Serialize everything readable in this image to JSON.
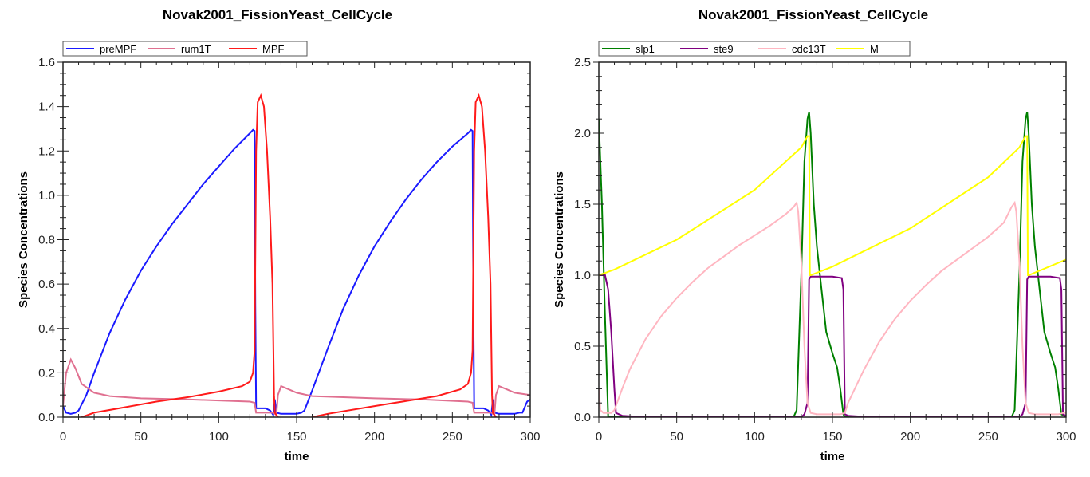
{
  "chart_data": [
    {
      "type": "line",
      "title": "Novak2001_FissionYeast_CellCycle",
      "xlabel": "time",
      "ylabel": "Species Concentrations",
      "xlim": [
        0,
        300
      ],
      "ylim": [
        0,
        1.6
      ],
      "xmajor": 50,
      "xminor": 10,
      "ymajor": 0.2,
      "yminor": 0.05,
      "ydec": 1,
      "xticks": [
        "0",
        "50",
        "100",
        "150",
        "200",
        "250",
        "300"
      ],
      "yticks": [
        "0.0",
        "0.2",
        "0.4",
        "0.6",
        "0.8",
        "1.0",
        "1.2",
        "1.4",
        "1.6"
      ],
      "legend": "top-left",
      "series": [
        {
          "name": "preMPF",
          "color": "#1a1aff",
          "x": [
            0,
            2,
            5,
            8,
            10,
            15,
            20,
            30,
            40,
            50,
            60,
            70,
            80,
            90,
            100,
            110,
            120,
            122,
            123,
            123.5,
            124,
            130,
            133,
            135,
            136,
            137,
            140,
            150,
            153,
            155,
            160,
            170,
            180,
            190,
            200,
            210,
            220,
            230,
            240,
            250,
            260,
            262,
            263,
            263.5,
            264,
            270,
            273,
            275,
            276,
            277,
            280,
            290,
            293,
            295,
            298,
            300
          ],
          "y": [
            0.05,
            0.02,
            0.015,
            0.02,
            0.03,
            0.1,
            0.2,
            0.38,
            0.53,
            0.66,
            0.77,
            0.87,
            0.96,
            1.05,
            1.13,
            1.21,
            1.28,
            1.295,
            1.29,
            0.5,
            0.04,
            0.04,
            0.03,
            0.01,
            0.08,
            0.02,
            0.015,
            0.015,
            0.02,
            0.03,
            0.12,
            0.31,
            0.49,
            0.64,
            0.77,
            0.88,
            0.98,
            1.07,
            1.15,
            1.22,
            1.28,
            1.295,
            1.29,
            0.5,
            0.04,
            0.04,
            0.03,
            0.01,
            0.08,
            0.02,
            0.015,
            0.015,
            0.02,
            0.02,
            0.07,
            0.08
          ]
        },
        {
          "name": "rum1T",
          "color": "#e07090",
          "x": [
            0,
            2,
            5,
            8,
            12,
            20,
            30,
            50,
            80,
            100,
            120,
            123,
            124,
            130,
            135,
            137,
            138,
            140,
            145,
            150,
            160,
            180,
            200,
            230,
            260,
            263,
            264,
            270,
            275,
            277,
            278,
            280,
            285,
            290,
            300
          ],
          "y": [
            0.05,
            0.2,
            0.26,
            0.22,
            0.15,
            0.11,
            0.095,
            0.085,
            0.08,
            0.075,
            0.07,
            0.065,
            0.02,
            0.02,
            0.02,
            0.01,
            0.1,
            0.14,
            0.125,
            0.11,
            0.095,
            0.09,
            0.085,
            0.08,
            0.07,
            0.065,
            0.02,
            0.02,
            0.02,
            0.01,
            0.1,
            0.14,
            0.125,
            0.11,
            0.1
          ]
        },
        {
          "name": "MPF",
          "color": "#ff1a1a",
          "x": [
            10,
            12,
            20,
            40,
            60,
            80,
            100,
            115,
            120,
            122,
            123,
            124,
            125,
            127,
            129,
            131,
            133,
            134.5,
            135.5,
            136,
            138,
            140,
            158,
            160,
            170,
            200,
            240,
            255,
            260,
            262,
            263,
            264,
            265,
            267,
            269,
            271,
            273,
            274.5,
            275.5,
            276,
            278,
            280
          ],
          "y": [
            -0.01,
            0,
            0.02,
            0.045,
            0.07,
            0.09,
            0.115,
            0.14,
            0.16,
            0.2,
            0.3,
            1.2,
            1.42,
            1.45,
            1.4,
            1.2,
            0.9,
            0.6,
            0.1,
            0.02,
            0,
            -0.02,
            -0.02,
            0,
            0.015,
            0.05,
            0.095,
            0.125,
            0.15,
            0.2,
            0.3,
            1.2,
            1.42,
            1.45,
            1.4,
            1.2,
            0.9,
            0.6,
            0.1,
            0.02,
            0,
            -0.02
          ]
        }
      ]
    },
    {
      "type": "line",
      "title": "Novak2001_FissionYeast_CellCycle",
      "xlabel": "time",
      "ylabel": "Species Concentrations",
      "xlim": [
        0,
        300
      ],
      "ylim": [
        0,
        2.5
      ],
      "xmajor": 50,
      "xminor": 10,
      "ymajor": 0.5,
      "yminor": 0.1,
      "ydec": 1,
      "xticks": [
        "0",
        "50",
        "100",
        "150",
        "200",
        "250",
        "300"
      ],
      "yticks": [
        "0.0",
        "0.5",
        "1.0",
        "1.5",
        "2.0",
        "2.5"
      ],
      "legend": "top-left",
      "series": [
        {
          "name": "slp1",
          "color": "#008000",
          "x": [
            0,
            2,
            4,
            6,
            125,
            127,
            130,
            132,
            134,
            135,
            136,
            138,
            140,
            143,
            146,
            150,
            153,
            155,
            157,
            158,
            265,
            267,
            270,
            272,
            274,
            275,
            276,
            278,
            280,
            283,
            286,
            290,
            293,
            295,
            297,
            300
          ],
          "y": [
            2.1,
            1.5,
            0.7,
            0,
            0,
            0.05,
            1.0,
            1.8,
            2.1,
            2.15,
            2.0,
            1.5,
            1.2,
            0.9,
            0.6,
            0.45,
            0.35,
            0.2,
            0.02,
            0,
            0,
            0.05,
            1.0,
            1.8,
            2.1,
            2.15,
            2.0,
            1.5,
            1.2,
            0.9,
            0.6,
            0.45,
            0.35,
            0.2,
            0.02,
            0
          ]
        },
        {
          "name": "ste9",
          "color": "#800080",
          "x": [
            0,
            4,
            6,
            8,
            10,
            11,
            15,
            30,
            130,
            132,
            134,
            135,
            136,
            150,
            156,
            157,
            158,
            160,
            175,
            270,
            272,
            274,
            275,
            276,
            290,
            296,
            297,
            298,
            300
          ],
          "y": [
            1.0,
            1.0,
            0.9,
            0.6,
            0.2,
            0.03,
            0.01,
            0,
            0,
            0.02,
            0.1,
            0.97,
            0.99,
            0.99,
            0.98,
            0.9,
            0.02,
            0.01,
            0,
            0,
            0.02,
            0.1,
            0.97,
            0.99,
            0.99,
            0.98,
            0.9,
            0.02,
            0.01
          ]
        },
        {
          "name": "cdc13T",
          "color": "#ffb6c1",
          "x": [
            0,
            1,
            3,
            8,
            10,
            15,
            20,
            30,
            40,
            50,
            60,
            70,
            80,
            90,
            100,
            110,
            120,
            125,
            127,
            128,
            130,
            132,
            134,
            136,
            140,
            155,
            158,
            160,
            170,
            180,
            190,
            200,
            210,
            220,
            230,
            240,
            250,
            260,
            265,
            267,
            268,
            270,
            272,
            274,
            276,
            280,
            295,
            298,
            300
          ],
          "y": [
            0.2,
            0.05,
            0.03,
            0.03,
            0.05,
            0.2,
            0.34,
            0.55,
            0.71,
            0.84,
            0.95,
            1.05,
            1.13,
            1.21,
            1.28,
            1.35,
            1.43,
            1.48,
            1.51,
            1.45,
            1.1,
            0.5,
            0.1,
            0.03,
            0.02,
            0.02,
            0.03,
            0.1,
            0.33,
            0.53,
            0.69,
            0.82,
            0.93,
            1.03,
            1.11,
            1.19,
            1.27,
            1.37,
            1.48,
            1.51,
            1.45,
            1.1,
            0.5,
            0.1,
            0.03,
            0.02,
            0.02,
            0.03,
            0.03
          ]
        },
        {
          "name": "M",
          "color": "#ffff00",
          "x": [
            0,
            10,
            50,
            100,
            130,
            134,
            135,
            135.5,
            136,
            150,
            200,
            250,
            270,
            274,
            275,
            275.5,
            276,
            300
          ],
          "y": [
            1.0,
            1.04,
            1.25,
            1.6,
            1.9,
            1.98,
            1.98,
            1.0,
            1.0,
            1.06,
            1.33,
            1.69,
            1.9,
            1.98,
            1.98,
            1.0,
            1.0,
            1.11
          ]
        }
      ]
    }
  ]
}
